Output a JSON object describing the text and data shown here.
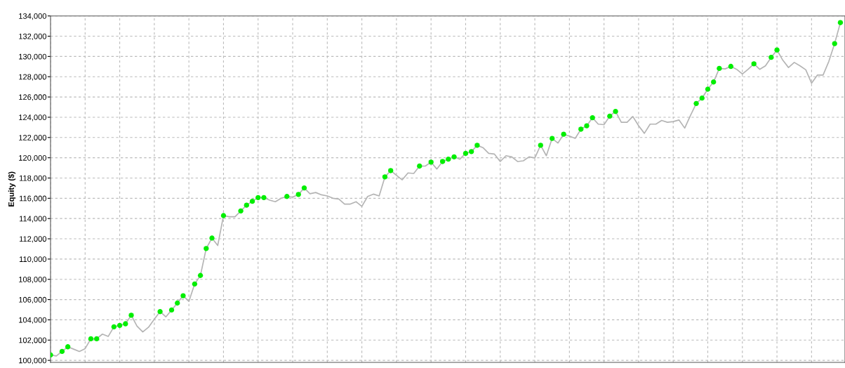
{
  "chart_data": {
    "type": "line",
    "ylabel": "Equity ($)",
    "categories": [
      null,
      null,
      null,
      null,
      null,
      null,
      null,
      null,
      null,
      null,
      null,
      null,
      null,
      null,
      null,
      null,
      null,
      null,
      null,
      null,
      null,
      null,
      null,
      null,
      null,
      null,
      null,
      null,
      null,
      null,
      null,
      null,
      null,
      null,
      null,
      null,
      null,
      null,
      null,
      null,
      null,
      null,
      null,
      null,
      null,
      null,
      null,
      null,
      null,
      null,
      null,
      null,
      null,
      null,
      null,
      null,
      null,
      null,
      null,
      null,
      null,
      null,
      null,
      null,
      null,
      null,
      null,
      null,
      null,
      null,
      null,
      null,
      null,
      null,
      null,
      null,
      null,
      null,
      null,
      null,
      null,
      null,
      null,
      null,
      null,
      null,
      null,
      null,
      null,
      null,
      null,
      null,
      null,
      null,
      null,
      null,
      null,
      null,
      null,
      null,
      null,
      null,
      null,
      null,
      null,
      null,
      null,
      null,
      null,
      null,
      null,
      null,
      null,
      null,
      null,
      null,
      null,
      null,
      null,
      null,
      null,
      null,
      null,
      null,
      null,
      null,
      null,
      null,
      null,
      null,
      null,
      null,
      null,
      null,
      null,
      null,
      null,
      null
    ],
    "series": [
      {
        "color": "#b4b4b4",
        "marker": "none",
        "line_style": "solid",
        "values": [
          100540,
          100430,
          100880,
          101340,
          101110,
          100880,
          101160,
          102130,
          102130,
          102590,
          102360,
          103310,
          103450,
          103610,
          104450,
          103380,
          102810,
          103270,
          104060,
          104810,
          104290,
          104970,
          105660,
          106380,
          105820,
          107540,
          108380,
          111040,
          112070,
          111340,
          114290,
          114180,
          114180,
          114750,
          115320,
          115700,
          116070,
          116070,
          115820,
          115660,
          116000,
          116180,
          116110,
          116380,
          117020,
          116450,
          116570,
          116340,
          116230,
          116000,
          115930,
          115430,
          115430,
          115660,
          115200,
          116180,
          116410,
          116230,
          118110,
          118730,
          118270,
          117820,
          118500,
          118450,
          119180,
          119180,
          119570,
          118890,
          119630,
          119860,
          120090,
          119860,
          120430,
          120610,
          121230,
          121000,
          120430,
          120360,
          119630,
          120200,
          120090,
          119630,
          119700,
          120090,
          119980,
          121230,
          120200,
          121910,
          121450,
          122320,
          122140,
          121910,
          122820,
          123160,
          123950,
          123320,
          123270,
          124110,
          124570,
          123500,
          123500,
          124070,
          123160,
          122410,
          123320,
          123320,
          123680,
          123500,
          123570,
          123730,
          122930,
          124180,
          125360,
          125890,
          126770,
          127480,
          128820,
          128770,
          129020,
          128730,
          128270,
          128730,
          129270,
          128730,
          129070,
          129910,
          130640,
          129640,
          128910,
          129410,
          129070,
          128680,
          127360,
          128160,
          128160,
          129520,
          131270,
          133340
        ]
      },
      {
        "type": "scatter",
        "color": "#00ee00",
        "marker": "circle",
        "values": [
          100540,
          null,
          100880,
          101340,
          null,
          null,
          null,
          102130,
          102130,
          null,
          null,
          103310,
          103450,
          103610,
          104450,
          null,
          null,
          null,
          null,
          104810,
          null,
          104970,
          105660,
          106380,
          null,
          107540,
          108380,
          111040,
          112070,
          null,
          114290,
          null,
          null,
          114750,
          115320,
          115700,
          116070,
          116070,
          null,
          null,
          null,
          116180,
          null,
          116380,
          117020,
          null,
          null,
          null,
          null,
          null,
          null,
          null,
          null,
          null,
          null,
          null,
          null,
          null,
          118110,
          118730,
          null,
          null,
          null,
          null,
          119180,
          null,
          119570,
          null,
          119630,
          119860,
          120090,
          null,
          120430,
          120610,
          121230,
          null,
          null,
          null,
          null,
          null,
          null,
          null,
          null,
          null,
          null,
          121230,
          null,
          121910,
          null,
          122320,
          null,
          null,
          122820,
          123160,
          123950,
          null,
          null,
          124110,
          124570,
          null,
          null,
          null,
          null,
          null,
          null,
          null,
          null,
          null,
          null,
          null,
          null,
          null,
          125360,
          125890,
          126770,
          127480,
          128820,
          null,
          129020,
          null,
          null,
          null,
          129270,
          null,
          null,
          129910,
          130640,
          null,
          null,
          null,
          null,
          null,
          null,
          null,
          null,
          null,
          131270,
          133340
        ]
      }
    ],
    "ylim": [
      99800,
      134000
    ],
    "yticks": [
      {
        "value": 100000,
        "label": "100,000"
      },
      {
        "value": 102000,
        "label": "102,000"
      },
      {
        "value": 104000,
        "label": "104,000"
      },
      {
        "value": 106000,
        "label": "106,000"
      },
      {
        "value": 108000,
        "label": "108,000"
      },
      {
        "value": 110000,
        "label": "110,000"
      },
      {
        "value": 112000,
        "label": "112,000"
      },
      {
        "value": 114000,
        "label": "114,000"
      },
      {
        "value": 116000,
        "label": "116,000"
      },
      {
        "value": 118000,
        "label": "118,000"
      },
      {
        "value": 120000,
        "label": "120,000"
      },
      {
        "value": 122000,
        "label": "122,000"
      },
      {
        "value": 124000,
        "label": "124,000"
      },
      {
        "value": 126000,
        "label": "126,000"
      },
      {
        "value": 128000,
        "label": "128,000"
      },
      {
        "value": 130000,
        "label": "130,000"
      },
      {
        "value": 132000,
        "label": "132,000"
      },
      {
        "value": 134000,
        "label": "134,000"
      }
    ],
    "grid": true,
    "tick_labels": "y"
  }
}
